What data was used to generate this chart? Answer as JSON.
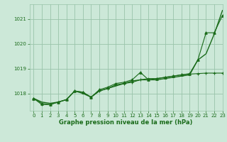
{
  "bg_color": "#cce8d8",
  "grid_color": "#99c4aa",
  "line_color": "#1a6b1a",
  "text_color": "#1a6b1a",
  "xlabel": "Graphe pression niveau de la mer (hPa)",
  "ylim": [
    1017.3,
    1021.6
  ],
  "xlim": [
    -0.5,
    23
  ],
  "yticks": [
    1018,
    1019,
    1020,
    1021
  ],
  "xticks": [
    0,
    1,
    2,
    3,
    4,
    5,
    6,
    7,
    8,
    9,
    10,
    11,
    12,
    13,
    14,
    15,
    16,
    17,
    18,
    19,
    20,
    21,
    22,
    23
  ],
  "series": [
    {
      "y": [
        1017.8,
        1017.65,
        1017.6,
        1017.65,
        1017.75,
        1018.1,
        1018.0,
        1017.85,
        1018.1,
        1018.2,
        1018.3,
        1018.4,
        1018.5,
        1018.55,
        1018.55,
        1018.55,
        1018.6,
        1018.65,
        1018.7,
        1018.75,
        1019.35,
        1019.6,
        1020.4,
        1021.35
      ],
      "marker": null,
      "lw": 1.0
    },
    {
      "y": [
        1017.8,
        1017.6,
        1017.55,
        1017.65,
        1017.75,
        1018.1,
        1018.05,
        1017.85,
        1018.15,
        1018.25,
        1018.4,
        1018.45,
        1018.55,
        1018.85,
        1018.55,
        1018.6,
        1018.65,
        1018.7,
        1018.75,
        1018.8,
        1019.35,
        1020.45,
        1020.45,
        1021.15
      ],
      "marker": "^",
      "lw": 0.8
    },
    {
      "y": [
        1017.8,
        1017.55,
        1017.55,
        1017.65,
        1017.75,
        1018.1,
        1018.05,
        1017.85,
        1018.1,
        1018.2,
        1018.35,
        1018.4,
        1018.45,
        1018.55,
        1018.6,
        1018.6,
        1018.65,
        1018.7,
        1018.75,
        1018.78,
        1018.8,
        1018.82,
        1018.82,
        1018.82
      ],
      "marker": "+",
      "lw": 0.8
    }
  ]
}
